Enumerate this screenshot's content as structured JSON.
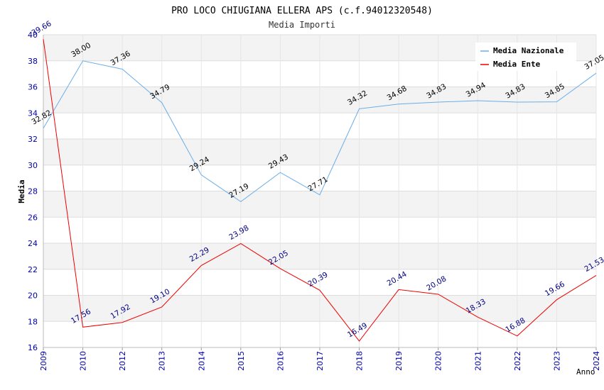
{
  "chart_data": {
    "type": "line",
    "title": "PRO LOCO CHIUGIANA ELLERA APS (c.f.94012320548)",
    "subtitle": "Media Importi",
    "xlabel": "Anno",
    "ylabel": "Media",
    "categories": [
      "2009",
      "2010",
      "2012",
      "2013",
      "2014",
      "2015",
      "2016",
      "2017",
      "2018",
      "2019",
      "2020",
      "2021",
      "2022",
      "2023",
      "2024"
    ],
    "ylim": [
      16,
      40
    ],
    "yticks": [
      16,
      18,
      20,
      22,
      24,
      26,
      28,
      30,
      32,
      34,
      36,
      38,
      40
    ],
    "grid": true,
    "legend_position": "top-right",
    "series": [
      {
        "name": "Media Nazionale",
        "color": "#6aaee8",
        "values": [
          32.82,
          38.0,
          37.36,
          34.79,
          29.24,
          27.19,
          29.43,
          27.71,
          34.32,
          34.68,
          34.83,
          34.94,
          34.83,
          34.85,
          37.05
        ],
        "labels": [
          "32.82",
          "38.00",
          "37.36",
          "34.79",
          "29.24",
          "27.19",
          "29.43",
          "27.71",
          "34.32",
          "34.68",
          "34.83",
          "34.94",
          "34.83",
          "34.85",
          "37.05"
        ]
      },
      {
        "name": "Media Ente",
        "color": "#ee0000",
        "values": [
          39.66,
          17.56,
          17.92,
          19.1,
          22.29,
          23.98,
          22.05,
          20.39,
          16.49,
          20.44,
          20.08,
          18.33,
          16.88,
          19.66,
          21.53
        ],
        "labels": [
          "39.66",
          "17.56",
          "17.92",
          "19.10",
          "22.29",
          "23.98",
          "22.05",
          "20.39",
          "16.49",
          "20.44",
          "20.08",
          "18.33",
          "16.88",
          "19.66",
          "21.53"
        ]
      }
    ]
  }
}
